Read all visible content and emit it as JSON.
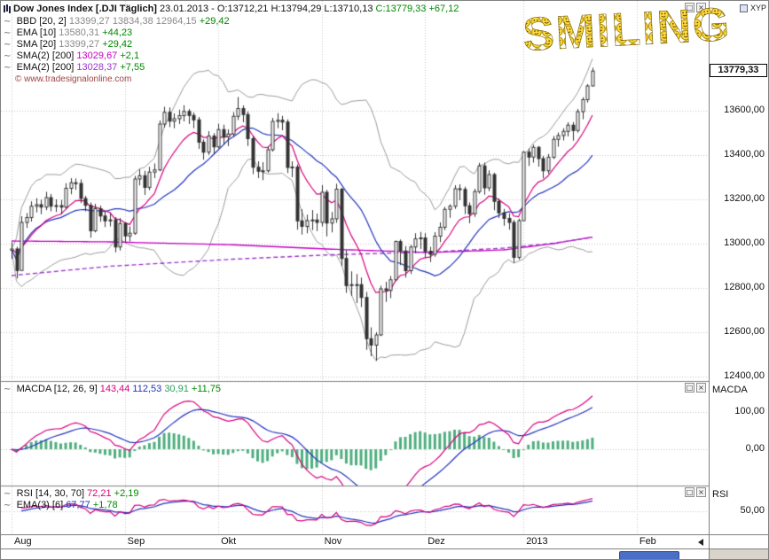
{
  "watermark": "SMILING",
  "window": {
    "layout_label": "XYP",
    "panel_buttons": [
      "restore-icon",
      "close-icon"
    ]
  },
  "header": {
    "title": "Dow Jones Index [.DJI  Täglich]",
    "date": "23.01.2013",
    "dash": "-",
    "open_label": "O:",
    "open": "13712,21",
    "high_label": "H:",
    "high": "13794,29",
    "low_label": "L:",
    "low": "13710,13",
    "close_label": "C:",
    "close": "13779,33",
    "change": "+67,12"
  },
  "legend": [
    {
      "icon": "wave-icon",
      "name": "BBD [20, 2]",
      "values": [
        {
          "text": "13399,27",
          "color": "#8a8a8a"
        },
        {
          "text": "13834,38",
          "color": "#8a8a8a"
        },
        {
          "text": "12964,15",
          "color": "#8a8a8a"
        }
      ],
      "change": "+29,42"
    },
    {
      "icon": "wave-icon",
      "name": "EMA [10]",
      "values": [
        {
          "text": "13580,31",
          "color": "#8a8a8a"
        }
      ],
      "change": "+44,23"
    },
    {
      "icon": "wave-icon",
      "name": "SMA [20]",
      "values": [
        {
          "text": "13399,27",
          "color": "#8a8a8a"
        }
      ],
      "change": "+29,42"
    },
    {
      "icon": "wave-icon",
      "name": "SMA(2) [200]",
      "values": [
        {
          "text": "13029,67",
          "color": "#c400c4"
        }
      ],
      "change": "+2,1"
    },
    {
      "icon": "wave-icon",
      "name": "EMA(2) [200]",
      "values": [
        {
          "text": "13028,37",
          "color": "#9933cc"
        }
      ],
      "change": "+7,55"
    }
  ],
  "copyright": "© www.tradesignalonline.com",
  "macd_panel": {
    "axis_label": "MACDA",
    "legend": {
      "icon": "wave-icon",
      "name": "MACDA [12, 26, 9]",
      "values": [
        {
          "text": "143,44",
          "color": "#d6007e"
        },
        {
          "text": "112,53",
          "color": "#2233bb"
        },
        {
          "text": "30,91",
          "color": "#2e9e5b"
        }
      ],
      "change": "+11,75"
    },
    "ticks": [
      {
        "label": "100,00",
        "value": 100
      },
      {
        "label": "0,00",
        "value": 0
      }
    ]
  },
  "rsi_panel": {
    "axis_label": "RSI",
    "legend": [
      {
        "icon": "wave-icon",
        "name": "RSI [14, 30, 70]",
        "values": [
          {
            "text": "72,21",
            "color": "#d6007e"
          }
        ],
        "change": "+2,19"
      },
      {
        "icon": "wave-icon",
        "name": "EMA(3) [6]",
        "values": [
          {
            "text": "67,77",
            "color": "#2233bb"
          }
        ],
        "change": "+1,78"
      }
    ],
    "ticks": [
      {
        "label": "50,00",
        "value": 50
      }
    ]
  },
  "price_axis": {
    "current_price": "13779,33",
    "ticks": [
      {
        "label": "13600,00",
        "value": 13600
      },
      {
        "label": "13400,00",
        "value": 13400
      },
      {
        "label": "13200,00",
        "value": 13200
      },
      {
        "label": "13000,00",
        "value": 13000
      },
      {
        "label": "12800,00",
        "value": 12800
      },
      {
        "label": "12600,00",
        "value": 12600
      },
      {
        "label": "12400,00",
        "value": 12400
      }
    ]
  },
  "colors": {
    "up_candle": "#ffffff",
    "down_candle": "#333333",
    "candle_stroke": "#333333",
    "ema10": "#d6007e",
    "sma20": "#2233bb",
    "bollinger": "#9a9a9a",
    "sma200": "#c400c4",
    "ema200": "#9933cc",
    "macd": "#d6007e",
    "macd_signal": "#2233bb",
    "macd_hist": "#4fae7f",
    "rsi": "#d6007e",
    "rsi_ema": "#2233bb",
    "change_positive": "#008800",
    "grid": "#c4c4c4",
    "smiley": "#ffd93b"
  },
  "chart_data": {
    "type": "candlestick",
    "title": "Dow Jones Index [.DJI Täglich]",
    "interval": "Täglich",
    "last_date": "23.01.2013",
    "ohlc_format": [
      "open",
      "high",
      "low",
      "close"
    ],
    "ylim": [
      12384,
      14064
    ],
    "x_months": [
      {
        "label": "Aug",
        "bar": 0
      },
      {
        "label": "Sep",
        "bar": 23
      },
      {
        "label": "Okt",
        "bar": 42
      },
      {
        "label": "Nov",
        "bar": 63
      },
      {
        "label": "Dez",
        "bar": 84
      },
      {
        "label": "2013",
        "bar": 104
      },
      {
        "label": "Feb",
        "bar": 127
      }
    ],
    "candles": [
      [
        12970,
        13007,
        12932,
        12976
      ],
      [
        12976,
        12986,
        12843,
        12879
      ],
      [
        12879,
        13124,
        12879,
        13096
      ],
      [
        13096,
        13138,
        13071,
        13118
      ],
      [
        13118,
        13191,
        13100,
        13169
      ],
      [
        13169,
        13205,
        13141,
        13176
      ],
      [
        13176,
        13199,
        13133,
        13165
      ],
      [
        13165,
        13234,
        13151,
        13208
      ],
      [
        13208,
        13224,
        13146,
        13169
      ],
      [
        13169,
        13200,
        13143,
        13172
      ],
      [
        13172,
        13197,
        13132,
        13165
      ],
      [
        13165,
        13273,
        13157,
        13250
      ],
      [
        13250,
        13296,
        13223,
        13275
      ],
      [
        13275,
        13294,
        13243,
        13272
      ],
      [
        13272,
        13290,
        13183,
        13204
      ],
      [
        13204,
        13216,
        13146,
        13173
      ],
      [
        13173,
        13186,
        13027,
        13058
      ],
      [
        13058,
        13180,
        13051,
        13158
      ],
      [
        13158,
        13172,
        13099,
        13125
      ],
      [
        13125,
        13146,
        13075,
        13103
      ],
      [
        13103,
        13136,
        13078,
        13107
      ],
      [
        13107,
        13120,
        12961,
        12985
      ],
      [
        12985,
        13116,
        12969,
        13091
      ],
      [
        13091,
        13097,
        13003,
        13035
      ],
      [
        13035,
        13078,
        13011,
        13047
      ],
      [
        13047,
        13306,
        13040,
        13292
      ],
      [
        13292,
        13336,
        13263,
        13307
      ],
      [
        13307,
        13329,
        13220,
        13254
      ],
      [
        13254,
        13347,
        13241,
        13323
      ],
      [
        13323,
        13362,
        13296,
        13333
      ],
      [
        13333,
        13556,
        13327,
        13540
      ],
      [
        13540,
        13618,
        13524,
        13593
      ],
      [
        13593,
        13615,
        13526,
        13553
      ],
      [
        13553,
        13588,
        13521,
        13564
      ],
      [
        13564,
        13605,
        13540,
        13578
      ],
      [
        13578,
        13625,
        13552,
        13597
      ],
      [
        13597,
        13608,
        13540,
        13579
      ],
      [
        13579,
        13592,
        13521,
        13559
      ],
      [
        13559,
        13572,
        13428,
        13458
      ],
      [
        13458,
        13471,
        13379,
        13413
      ],
      [
        13413,
        13508,
        13401,
        13486
      ],
      [
        13486,
        13499,
        13405,
        13437
      ],
      [
        13437,
        13541,
        13430,
        13515
      ],
      [
        13515,
        13537,
        13446,
        13482
      ],
      [
        13482,
        13516,
        13441,
        13495
      ],
      [
        13495,
        13594,
        13482,
        13575
      ],
      [
        13575,
        13662,
        13558,
        13610
      ],
      [
        13610,
        13624,
        13548,
        13583
      ],
      [
        13583,
        13597,
        13441,
        13474
      ],
      [
        13474,
        13488,
        13314,
        13345
      ],
      [
        13345,
        13372,
        13296,
        13327
      ],
      [
        13327,
        13368,
        13287,
        13329
      ],
      [
        13329,
        13437,
        13321,
        13424
      ],
      [
        13424,
        13568,
        13416,
        13552
      ],
      [
        13552,
        13589,
        13521,
        13557
      ],
      [
        13557,
        13577,
        13512,
        13549
      ],
      [
        13549,
        13561,
        13319,
        13344
      ],
      [
        13344,
        13372,
        13300,
        13346
      ],
      [
        13346,
        13358,
        13063,
        13103
      ],
      [
        13103,
        13155,
        13041,
        13078
      ],
      [
        13078,
        13131,
        13047,
        13104
      ],
      [
        13104,
        13152,
        13061,
        13107
      ],
      [
        13107,
        13136,
        13057,
        13096
      ],
      [
        13096,
        13264,
        13078,
        13232
      ],
      [
        13232,
        13243,
        13033,
        13093
      ],
      [
        13093,
        13143,
        13051,
        13112
      ],
      [
        13112,
        13271,
        13094,
        13246
      ],
      [
        13246,
        13252,
        12899,
        12933
      ],
      [
        12933,
        12971,
        12778,
        12811
      ],
      [
        12811,
        12875,
        12764,
        12815
      ],
      [
        12815,
        12863,
        12732,
        12815
      ],
      [
        12815,
        12847,
        12714,
        12757
      ],
      [
        12757,
        12782,
        12521,
        12571
      ],
      [
        12571,
        12622,
        12492,
        12542
      ],
      [
        12542,
        12601,
        12471,
        12588
      ],
      [
        12588,
        12810,
        12583,
        12796
      ],
      [
        12796,
        12828,
        12737,
        12789
      ],
      [
        12789,
        12854,
        12754,
        12837
      ],
      [
        12837,
        13014,
        12831,
        13010
      ],
      [
        13010,
        13019,
        12903,
        12967
      ],
      [
        12967,
        12989,
        12847,
        12878
      ],
      [
        12878,
        12994,
        12863,
        12985
      ],
      [
        12985,
        13047,
        12956,
        13022
      ],
      [
        13022,
        13053,
        12976,
        13026
      ],
      [
        13026,
        13047,
        12937,
        12966
      ],
      [
        12966,
        12986,
        12917,
        12952
      ],
      [
        12952,
        13052,
        12941,
        13034
      ],
      [
        13034,
        13096,
        13007,
        13074
      ],
      [
        13074,
        13166,
        13061,
        13155
      ],
      [
        13155,
        13178,
        13117,
        13169
      ],
      [
        13169,
        13264,
        13157,
        13248
      ],
      [
        13248,
        13268,
        13197,
        13245
      ],
      [
        13245,
        13257,
        13133,
        13171
      ],
      [
        13171,
        13186,
        13092,
        13135
      ],
      [
        13135,
        13248,
        13121,
        13235
      ],
      [
        13235,
        13365,
        13226,
        13351
      ],
      [
        13351,
        13366,
        13221,
        13252
      ],
      [
        13252,
        13331,
        13237,
        13312
      ],
      [
        13312,
        13320,
        13151,
        13191
      ],
      [
        13191,
        13204,
        13116,
        13139
      ],
      [
        13139,
        13157,
        13081,
        13114
      ],
      [
        13114,
        13137,
        13063,
        13096
      ],
      [
        13096,
        13107,
        12914,
        12938
      ],
      [
        12938,
        13113,
        12928,
        13104
      ],
      [
        13104,
        13418,
        13104,
        13413
      ],
      [
        13413,
        13430,
        13351,
        13391
      ],
      [
        13391,
        13447,
        13366,
        13435
      ],
      [
        13435,
        13441,
        13348,
        13384
      ],
      [
        13384,
        13396,
        13295,
        13329
      ],
      [
        13329,
        13405,
        13316,
        13390
      ],
      [
        13390,
        13486,
        13382,
        13471
      ],
      [
        13471,
        13502,
        13438,
        13488
      ],
      [
        13488,
        13521,
        13466,
        13507
      ],
      [
        13507,
        13548,
        13484,
        13535
      ],
      [
        13535,
        13549,
        13465,
        13511
      ],
      [
        13511,
        13608,
        13501,
        13596
      ],
      [
        13596,
        13661,
        13562,
        13650
      ],
      [
        13650,
        13720,
        13637,
        13712
      ],
      [
        13712.21,
        13794.29,
        13710.13,
        13779.33
      ]
    ],
    "indicators": {
      "bollinger": {
        "period": 20,
        "deviation": 2,
        "last": {
          "mid": 13399.27,
          "upper": 13834.38,
          "lower": 12964.15
        }
      },
      "ema10": {
        "period": 10,
        "last": 13580.31
      },
      "sma20": {
        "period": 20,
        "last": 13399.27
      },
      "sma200": {
        "period": 200,
        "last": 13029.67,
        "anchors": [
          [
            0,
            13012
          ],
          [
            20,
            13008
          ],
          [
            45,
            12995
          ],
          [
            65,
            12975
          ],
          [
            85,
            12960
          ],
          [
            100,
            12972
          ],
          [
            110,
            13000
          ],
          [
            118,
            13029.67
          ]
        ]
      },
      "ema200": {
        "period": 200,
        "last": 13028.37,
        "anchors": [
          [
            0,
            12856
          ],
          [
            20,
            12898
          ],
          [
            45,
            12930
          ],
          [
            65,
            12950
          ],
          [
            85,
            12962
          ],
          [
            100,
            12980
          ],
          [
            110,
            13002
          ],
          [
            118,
            13028.37
          ]
        ]
      },
      "macd": {
        "fast": 12,
        "slow": 26,
        "signal": 9,
        "last": {
          "macd": 143.44,
          "signal": 112.53,
          "hist": 30.91
        }
      },
      "rsi": {
        "period": 14,
        "levels": [
          30,
          70
        ],
        "last": 72.21,
        "ema_period": 6,
        "ema_last": 67.77
      }
    }
  }
}
